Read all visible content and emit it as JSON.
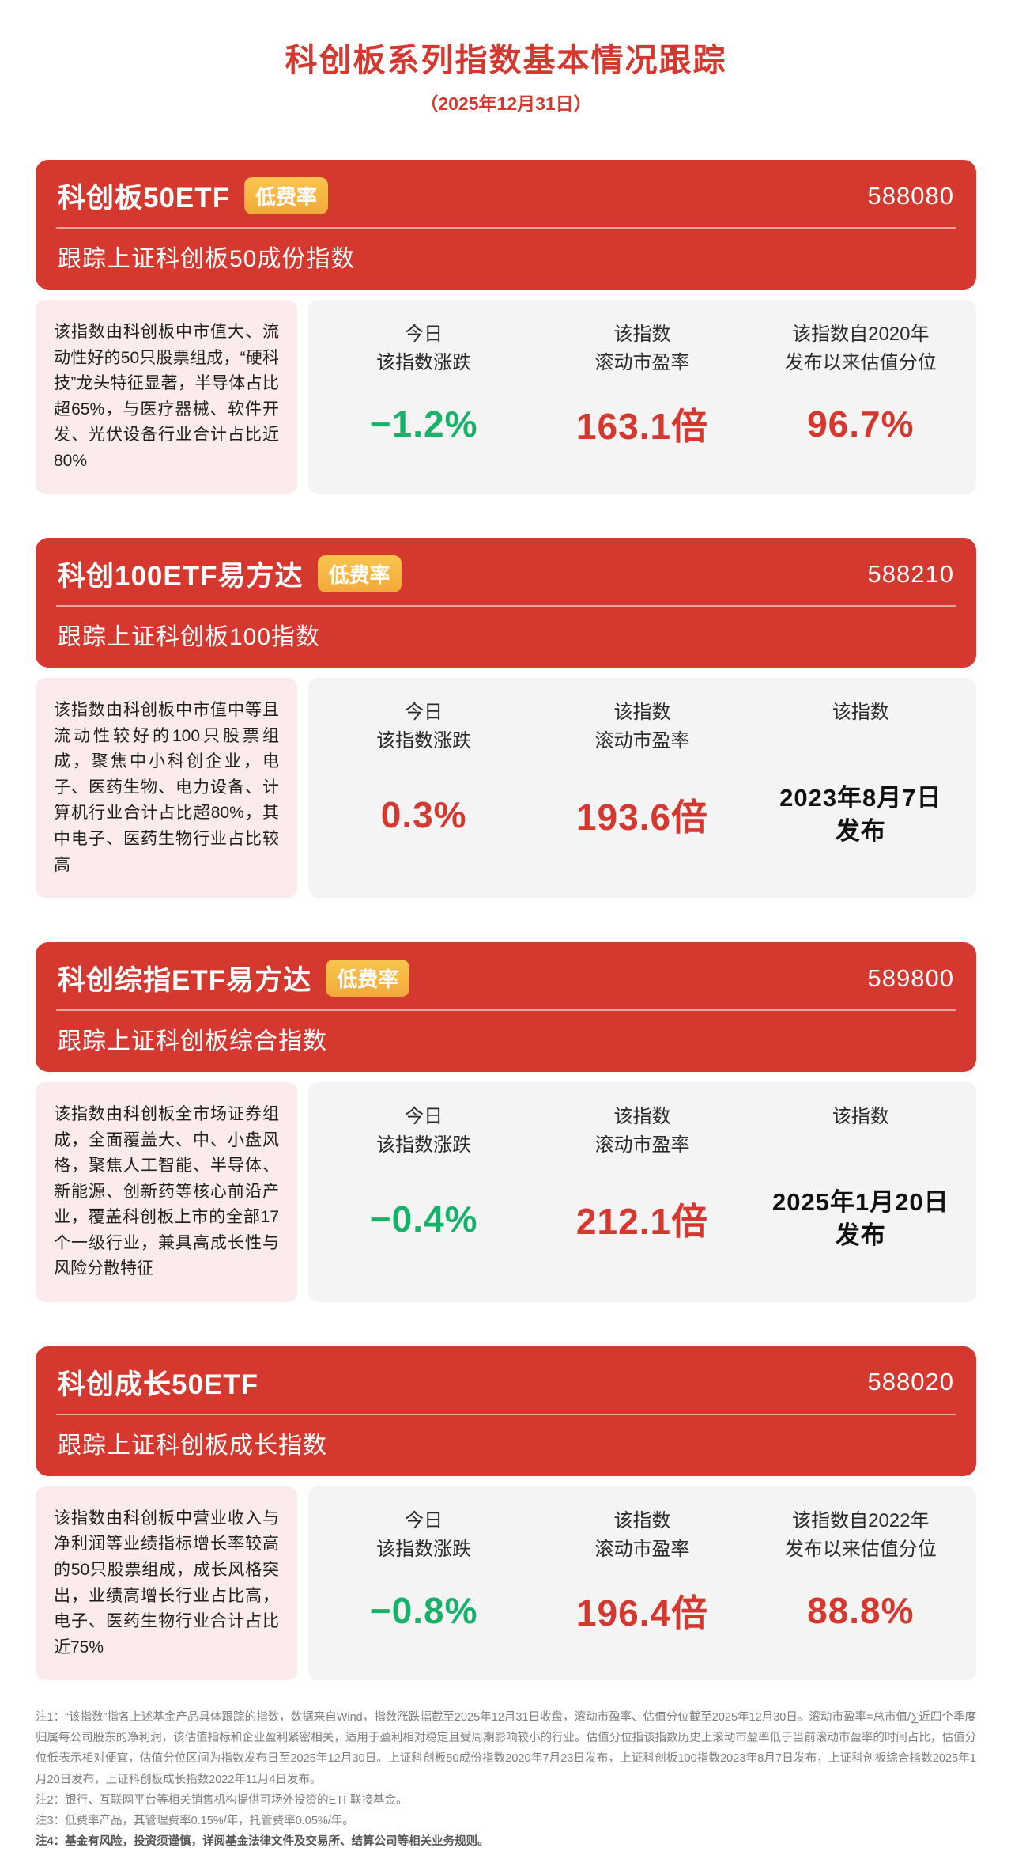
{
  "page": {
    "title": "科创板系列指数基本情况跟踪",
    "date_line": "（2025年12月31日）"
  },
  "colors": {
    "accent_red": "#d4382f",
    "badge_gold": "#f5b83f",
    "positive_down_green": "#17b26a",
    "value_red": "#d5382f",
    "desc_bg_pink": "#fbeceb",
    "stats_bg_gray": "#f4f4f4"
  },
  "cards": [
    {
      "title": "科创板50ETF",
      "badge": "低费率",
      "code": "588080",
      "subtitle": "跟踪上证科创板50成份指数",
      "description": "该指数由科创板中市值大、流动性好的50只股票组成，“硬科技”龙头特征显著，半导体占比超65%，与医疗器械、软件开发、光伏设备行业合计占比近80%",
      "stats": [
        {
          "label": "今日\n该指数涨跌",
          "value": "−1.2%",
          "color": "green"
        },
        {
          "label": "该指数\n滚动市盈率",
          "value": "163.1倍",
          "color": "red"
        },
        {
          "label": "该指数自2020年\n发布以来估值分位",
          "value": "96.7%",
          "color": "red"
        }
      ]
    },
    {
      "title": "科创100ETF易方达",
      "badge": "低费率",
      "code": "588210",
      "subtitle": "跟踪上证科创板100指数",
      "description": "该指数由科创板中市值中等且流动性较好的100只股票组成，聚焦中小科创企业，电子、医药生物、电力设备、计算机行业合计占比超80%，其中电子、医药生物行业占比较高",
      "stats": [
        {
          "label": "今日\n该指数涨跌",
          "value": "0.3%",
          "color": "red"
        },
        {
          "label": "该指数\n滚动市盈率",
          "value": "193.6倍",
          "color": "red"
        },
        {
          "label": "该指数",
          "value": "2023年8月7日\n发布",
          "color": "dark"
        }
      ]
    },
    {
      "title": "科创综指ETF易方达",
      "badge": "低费率",
      "code": "589800",
      "subtitle": "跟踪上证科创板综合指数",
      "description": "该指数由科创板全市场证券组成，全面覆盖大、中、小盘风格，聚焦人工智能、半导体、新能源、创新药等核心前沿产业，覆盖科创板上市的全部17个一级行业，兼具高成长性与风险分散特征",
      "stats": [
        {
          "label": "今日\n该指数涨跌",
          "value": "−0.4%",
          "color": "green"
        },
        {
          "label": "该指数\n滚动市盈率",
          "value": "212.1倍",
          "color": "red"
        },
        {
          "label": "该指数",
          "value": "2025年1月20日\n发布",
          "color": "dark"
        }
      ]
    },
    {
      "title": "科创成长50ETF",
      "badge": "",
      "code": "588020",
      "subtitle": "跟踪上证科创板成长指数",
      "description": "该指数由科创板中营业收入与净利润等业绩指标增长率较高的50只股票组成，成长风格突出，业绩高增长行业占比高，电子、医药生物行业合计占比近75%",
      "stats": [
        {
          "label": "今日\n该指数涨跌",
          "value": "−0.8%",
          "color": "green"
        },
        {
          "label": "该指数\n滚动市盈率",
          "value": "196.4倍",
          "color": "red"
        },
        {
          "label": "该指数自2022年\n发布以来估值分位",
          "value": "88.8%",
          "color": "red"
        }
      ]
    }
  ],
  "footnotes": [
    "注1：“该指数”指各上述基金产品具体跟踪的指数，数据来自Wind，指数涨跌幅截至2025年12月31日收盘，滚动市盈率、估值分位截至2025年12月30日。滚动市盈率=总市值/∑近四个季度归属每公司股东的净利润，该估值指标和企业盈利紧密相关，适用于盈利相对稳定且受周期影响较小的行业。估值分位指该指数历史上滚动市盈率低于当前滚动市盈率的时间占比，估值分位低表示相对便宜，估值分位区间为指数发布日至2025年12月30日。上证科创板50成份指数2020年7月23日发布，上证科创板100指数2023年8月7日发布，上证科创板综合指数2025年1月20日发布，上证科创板成长指数2022年11月4日发布。",
    "注2：银行、互联网平台等相关销售机构提供可场外投资的ETF联接基金。",
    "注3：低费率产品，其管理费率0.15%/年，托管费率0.05%/年。",
    "注4：基金有风险，投资须谨慎，详阅基金法律文件及交易所、结算公司等相关业务规则。"
  ]
}
